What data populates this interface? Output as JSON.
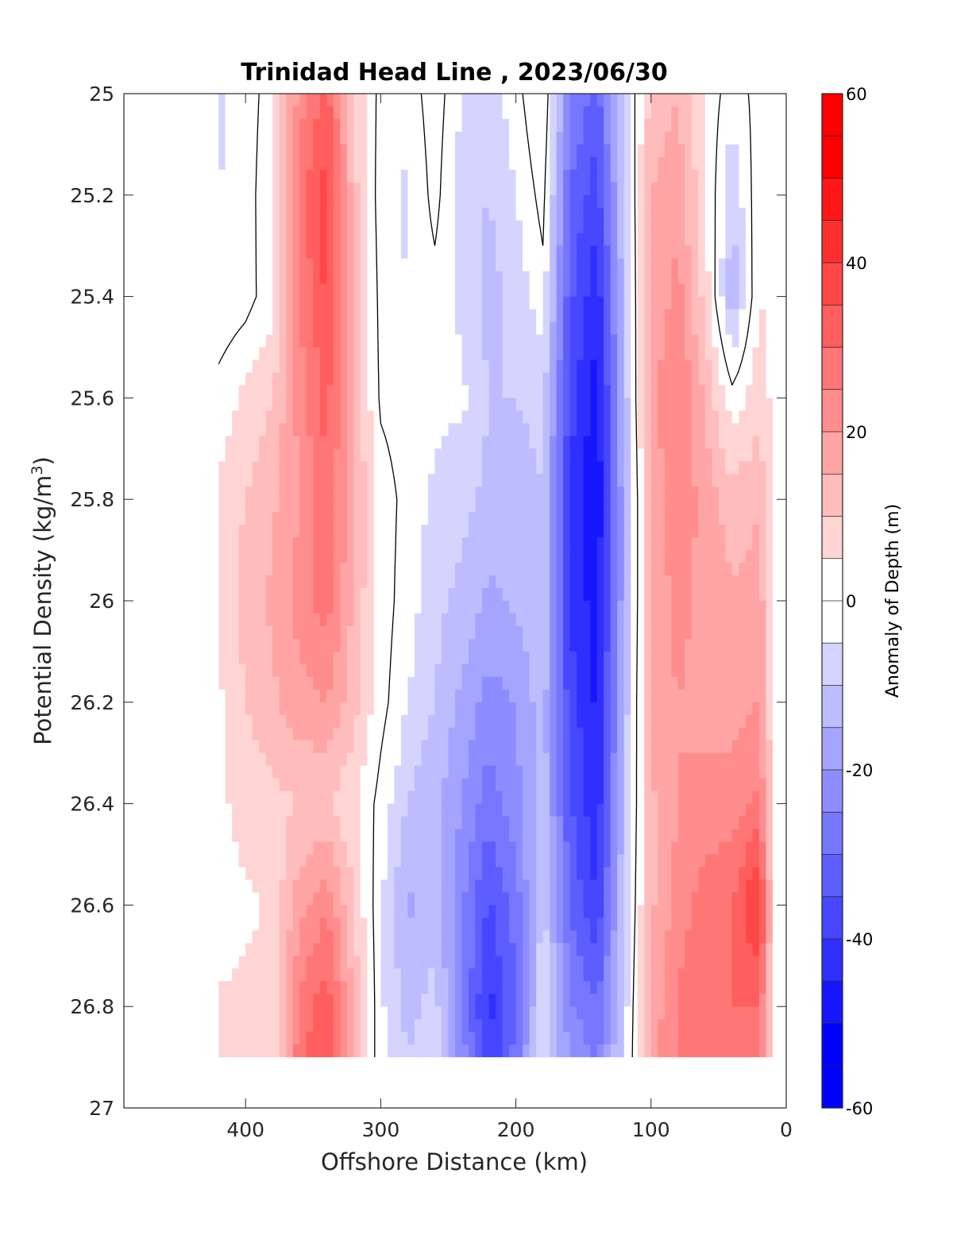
{
  "chart_data": {
    "type": "heatmap",
    "title": "Trinidad Head Line , 2023/06/30",
    "xlabel": "Offshore Distance (km)",
    "ylabel_main": "Potential Density (kg/m",
    "ylabel_sup": "3",
    "ylabel_close": ")",
    "xlim": [
      490,
      0
    ],
    "ylim": [
      27,
      25
    ],
    "x_reversed": true,
    "y_reversed": true,
    "x_ticks": [
      400,
      300,
      200,
      100,
      0
    ],
    "y_ticks": [
      25,
      25.2,
      25.4,
      25.6,
      25.8,
      26,
      26.2,
      26.4,
      26.6,
      26.8,
      27
    ],
    "colorbar": {
      "label": "Anomaly of Depth (m)",
      "range": [
        -60,
        60
      ],
      "step": 5,
      "ticks": [
        60,
        40,
        20,
        0,
        -20,
        -40,
        -60
      ],
      "colormap": "blue-white-red"
    },
    "data_extent": {
      "x": [
        420,
        10
      ],
      "y": [
        25,
        26.9
      ]
    },
    "x": [
      420,
      400,
      380,
      360,
      340,
      320,
      300,
      280,
      260,
      240,
      220,
      200,
      180,
      160,
      140,
      120,
      100,
      80,
      60,
      40,
      20,
      10
    ],
    "y": [
      25.0,
      25.2,
      25.4,
      25.6,
      25.8,
      26.0,
      26.2,
      26.4,
      26.6,
      26.8,
      26.9
    ],
    "anomaly_rows": [
      [
        -6,
        -3,
        3,
        22,
        32,
        10,
        -2,
        -3,
        3,
        -5,
        -8,
        -2,
        6,
        -25,
        -32,
        -8,
        12,
        15,
        4,
        -3,
        2,
        3
      ],
      [
        -5,
        -3,
        5,
        28,
        38,
        12,
        -3,
        -6,
        2,
        -8,
        -10,
        -5,
        2,
        -30,
        -38,
        -10,
        15,
        18,
        6,
        -10,
        4,
        3
      ],
      [
        -4,
        -2,
        3,
        25,
        36,
        14,
        -2,
        -5,
        -2,
        -6,
        -12,
        -8,
        -2,
        -34,
        -44,
        -12,
        16,
        22,
        8,
        -14,
        5,
        4
      ],
      [
        2,
        6,
        10,
        22,
        32,
        14,
        -1,
        -3,
        -4,
        -4,
        -10,
        -10,
        -8,
        -38,
        -48,
        -14,
        18,
        26,
        14,
        2,
        8,
        4
      ],
      [
        6,
        10,
        14,
        20,
        30,
        16,
        3,
        -2,
        -6,
        -8,
        -12,
        -14,
        -10,
        -40,
        -50,
        -16,
        16,
        24,
        18,
        12,
        14,
        6
      ],
      [
        6,
        12,
        16,
        22,
        28,
        14,
        3,
        -3,
        -8,
        -12,
        -16,
        -14,
        -10,
        -40,
        -48,
        -16,
        16,
        22,
        18,
        16,
        18,
        6
      ],
      [
        4,
        10,
        14,
        18,
        20,
        12,
        2,
        -5,
        -10,
        -16,
        -22,
        -20,
        -12,
        -38,
        -46,
        -14,
        16,
        20,
        18,
        18,
        20,
        6
      ],
      [
        4,
        7,
        8,
        10,
        10,
        6,
        -2,
        -10,
        -14,
        -20,
        -28,
        -22,
        -12,
        -34,
        -44,
        -12,
        14,
        20,
        22,
        22,
        26,
        6
      ],
      [
        2,
        4,
        6,
        18,
        24,
        10,
        -4,
        -16,
        -12,
        -24,
        -36,
        -28,
        -8,
        -30,
        -40,
        -10,
        14,
        22,
        28,
        30,
        42,
        8
      ],
      [
        6,
        6,
        6,
        26,
        34,
        14,
        -4,
        -12,
        -8,
        -24,
        -42,
        -30,
        -6,
        -24,
        -30,
        -8,
        16,
        26,
        28,
        30,
        30,
        6
      ],
      [
        6,
        6,
        6,
        28,
        36,
        14,
        -4,
        -10,
        -6,
        -22,
        -40,
        -28,
        -6,
        -20,
        -26,
        -8,
        18,
        26,
        26,
        26,
        26,
        6
      ]
    ]
  }
}
